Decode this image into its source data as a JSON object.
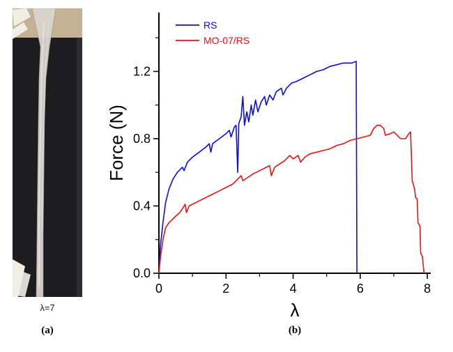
{
  "figure": {
    "panel_a": {
      "photo_label": "λ=7",
      "caption": "(a)"
    },
    "panel_b": {
      "caption": "(b)"
    }
  },
  "photo": {
    "subject": "stretched specimen clamped in tensile-test grips",
    "colors": {
      "background_top": "#c3b294",
      "background_dark": "#1d1d1f",
      "background_dark_edge": "#2c2c30",
      "specimen": "#d9d5cd",
      "specimen_highlight": "#f4f2ee",
      "clamp": "#f1eee5"
    }
  },
  "chart_data": {
    "type": "line",
    "title": "",
    "xlabel": "λ",
    "ylabel": "Force (N)",
    "xlim": [
      0,
      8.1
    ],
    "ylim": [
      0,
      1.55
    ],
    "grid": false,
    "legend_position": "top-left",
    "axis_color": "#000000",
    "x_major_ticks": [
      0,
      2,
      4,
      6,
      8
    ],
    "x_tick_labels": [
      "0",
      "2",
      "4",
      "6",
      "8"
    ],
    "x_minor_ticks": [
      1,
      3,
      5,
      7
    ],
    "y_major_ticks": [
      0,
      0.4,
      0.8,
      1.2
    ],
    "y_tick_labels": [
      "0.0",
      "0.4",
      "0.8",
      "1.2"
    ],
    "y_minor_ticks": [
      0.2,
      0.6,
      1.0,
      1.4
    ],
    "series": [
      {
        "name": "RS",
        "color": "#0b0bea",
        "points": [
          [
            0,
            0
          ],
          [
            0.05,
            0.17
          ],
          [
            0.12,
            0.3
          ],
          [
            0.2,
            0.42
          ],
          [
            0.3,
            0.5
          ],
          [
            0.42,
            0.56
          ],
          [
            0.55,
            0.6
          ],
          [
            0.7,
            0.63
          ],
          [
            0.75,
            0.61
          ],
          [
            0.85,
            0.66
          ],
          [
            1.0,
            0.69
          ],
          [
            1.2,
            0.72
          ],
          [
            1.4,
            0.75
          ],
          [
            1.5,
            0.77
          ],
          [
            1.55,
            0.72
          ],
          [
            1.6,
            0.77
          ],
          [
            1.8,
            0.8
          ],
          [
            2.0,
            0.83
          ],
          [
            2.1,
            0.85
          ],
          [
            2.15,
            0.81
          ],
          [
            2.25,
            0.87
          ],
          [
            2.3,
            0.88
          ],
          [
            2.35,
            0.6
          ],
          [
            2.38,
            0.89
          ],
          [
            2.45,
            0.93
          ],
          [
            2.5,
            1.05
          ],
          [
            2.55,
            0.88
          ],
          [
            2.62,
            0.96
          ],
          [
            2.68,
            0.9
          ],
          [
            2.75,
            1.0
          ],
          [
            2.8,
            0.94
          ],
          [
            2.88,
            1.03
          ],
          [
            2.95,
            0.96
          ],
          [
            3.05,
            1.02
          ],
          [
            3.15,
            1.05
          ],
          [
            3.2,
            1.0
          ],
          [
            3.3,
            1.06
          ],
          [
            3.4,
            1.03
          ],
          [
            3.5,
            1.08
          ],
          [
            3.65,
            1.1
          ],
          [
            3.7,
            1.06
          ],
          [
            3.8,
            1.1
          ],
          [
            3.95,
            1.13
          ],
          [
            4.1,
            1.14
          ],
          [
            4.3,
            1.16
          ],
          [
            4.5,
            1.18
          ],
          [
            4.7,
            1.2
          ],
          [
            4.9,
            1.21
          ],
          [
            5.1,
            1.23
          ],
          [
            5.3,
            1.24
          ],
          [
            5.5,
            1.25
          ],
          [
            5.75,
            1.25
          ],
          [
            5.88,
            1.26
          ],
          [
            5.9,
            0
          ]
        ]
      },
      {
        "name": "MO-07/RS",
        "color": "#ee1111",
        "points": [
          [
            0,
            0
          ],
          [
            0.05,
            0.1
          ],
          [
            0.12,
            0.2
          ],
          [
            0.2,
            0.27
          ],
          [
            0.3,
            0.3
          ],
          [
            0.4,
            0.32
          ],
          [
            0.5,
            0.34
          ],
          [
            0.62,
            0.36
          ],
          [
            0.72,
            0.39
          ],
          [
            0.78,
            0.41
          ],
          [
            0.82,
            0.36
          ],
          [
            0.9,
            0.4
          ],
          [
            1.0,
            0.41
          ],
          [
            1.2,
            0.43
          ],
          [
            1.4,
            0.45
          ],
          [
            1.6,
            0.47
          ],
          [
            1.8,
            0.49
          ],
          [
            2.0,
            0.51
          ],
          [
            2.2,
            0.53
          ],
          [
            2.35,
            0.56
          ],
          [
            2.45,
            0.58
          ],
          [
            2.5,
            0.55
          ],
          [
            2.65,
            0.57
          ],
          [
            2.8,
            0.59
          ],
          [
            3.0,
            0.61
          ],
          [
            3.2,
            0.63
          ],
          [
            3.3,
            0.64
          ],
          [
            3.35,
            0.58
          ],
          [
            3.45,
            0.63
          ],
          [
            3.6,
            0.65
          ],
          [
            3.75,
            0.67
          ],
          [
            3.9,
            0.7
          ],
          [
            4.0,
            0.68
          ],
          [
            4.15,
            0.7
          ],
          [
            4.22,
            0.66
          ],
          [
            4.35,
            0.69
          ],
          [
            4.5,
            0.71
          ],
          [
            4.7,
            0.72
          ],
          [
            4.9,
            0.73
          ],
          [
            5.1,
            0.74
          ],
          [
            5.3,
            0.76
          ],
          [
            5.5,
            0.77
          ],
          [
            5.7,
            0.79
          ],
          [
            5.9,
            0.8
          ],
          [
            6.1,
            0.81
          ],
          [
            6.3,
            0.82
          ],
          [
            6.4,
            0.86
          ],
          [
            6.5,
            0.88
          ],
          [
            6.6,
            0.88
          ],
          [
            6.7,
            0.86
          ],
          [
            6.75,
            0.82
          ],
          [
            6.9,
            0.83
          ],
          [
            7.0,
            0.84
          ],
          [
            7.1,
            0.82
          ],
          [
            7.2,
            0.8
          ],
          [
            7.35,
            0.8
          ],
          [
            7.45,
            0.83
          ],
          [
            7.5,
            0.84
          ],
          [
            7.55,
            0.55
          ],
          [
            7.62,
            0.5
          ],
          [
            7.65,
            0.45
          ],
          [
            7.7,
            0.44
          ],
          [
            7.72,
            0.3
          ],
          [
            7.78,
            0.28
          ],
          [
            7.8,
            0.12
          ],
          [
            7.85,
            0.1
          ],
          [
            7.9,
            0
          ]
        ]
      }
    ]
  }
}
